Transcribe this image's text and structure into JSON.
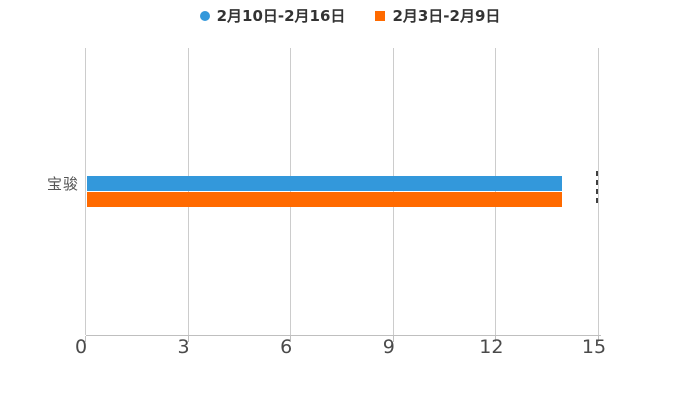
{
  "chart_data": {
    "type": "bar",
    "orientation": "horizontal",
    "title": "",
    "xlabel": "",
    "ylabel": "",
    "categories": [
      "宝骏"
    ],
    "series": [
      {
        "name": "2月10日-2月16日",
        "color": "#3398db",
        "marker_shape": "circle",
        "values": [
          13.9
        ]
      },
      {
        "name": "2月3日-2月9日",
        "color": "#ff6a00",
        "marker_shape": "square",
        "values": [
          13.9
        ]
      }
    ],
    "xlim": [
      0,
      15
    ],
    "x_ticks": [
      0,
      3,
      6,
      9,
      12,
      15
    ],
    "grid": true,
    "legend_position": "top-center",
    "colors": {
      "background": "#ffffff",
      "grid_line": "#cccccc",
      "axis_line": "#bfbfbf",
      "legend_text": "#333333",
      "axis_label_text": "#4a4a4a",
      "category_label_text": "#555555",
      "dashed_marker": "#3f3f3f"
    }
  }
}
